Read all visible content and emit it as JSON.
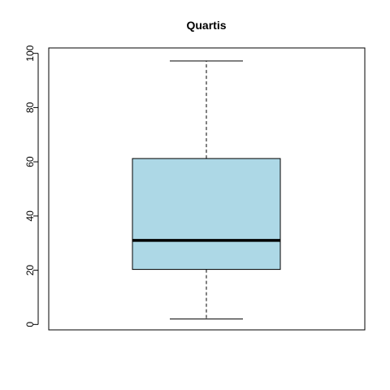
{
  "chart_data": {
    "type": "boxplot",
    "title": "Quartis",
    "xlabel": "",
    "ylabel": "",
    "ylim": [
      -2,
      102
    ],
    "yticks": [
      0,
      20,
      40,
      60,
      80,
      100
    ],
    "grid": false,
    "box": {
      "min": 2,
      "q1": 20.3,
      "median": 31,
      "q3": 61.2,
      "max": 97.2,
      "fill_color": "#ADD8E6",
      "median_color": "#000000"
    }
  }
}
